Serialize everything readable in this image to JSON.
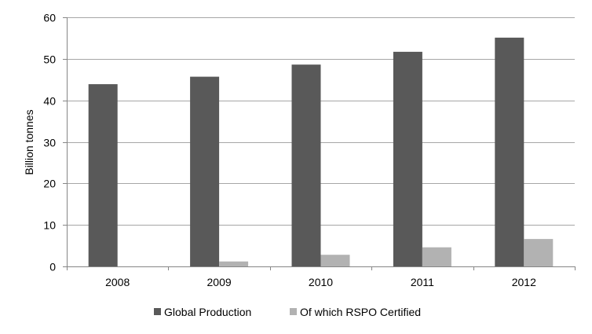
{
  "chart_data": {
    "type": "bar",
    "title": "",
    "xlabel": "",
    "ylabel": "Billion tonnes",
    "ylim": [
      0,
      60
    ],
    "yticks": [
      0,
      10,
      20,
      30,
      40,
      50,
      60
    ],
    "grid": true,
    "legend_position": "bottom",
    "categories": [
      "2008",
      "2009",
      "2010",
      "2011",
      "2012"
    ],
    "series": [
      {
        "name": "Global Production",
        "color": "#595959",
        "values": [
          43.9,
          45.7,
          48.6,
          51.7,
          55.1
        ]
      },
      {
        "name": "Of which RSPO Certified",
        "color": "#b2b2b2",
        "values": [
          0,
          1.2,
          2.8,
          4.6,
          6.6
        ]
      }
    ]
  }
}
